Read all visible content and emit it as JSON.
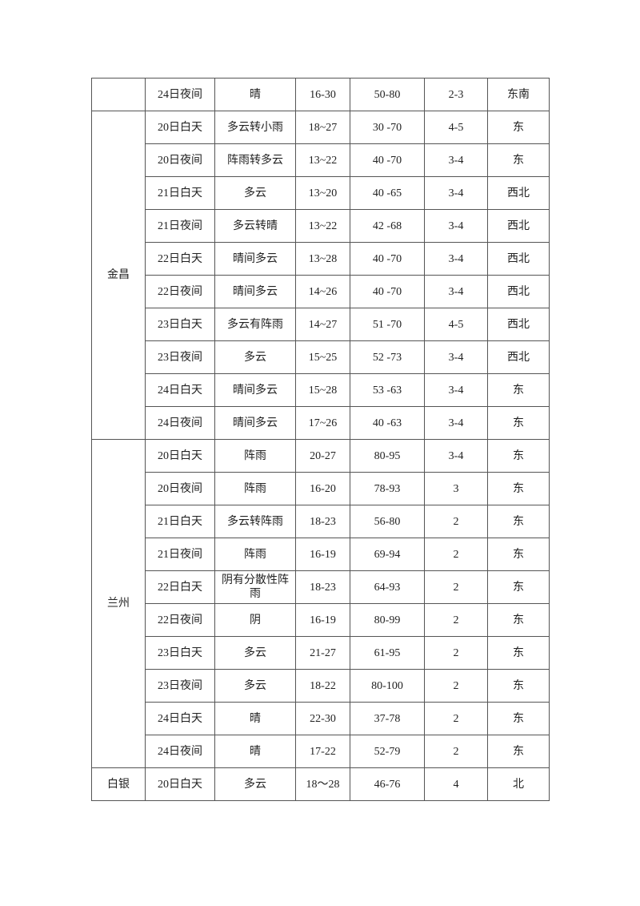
{
  "groups": [
    {
      "city": "",
      "rows": [
        [
          "24日夜间",
          "晴",
          "16-30",
          "50-80",
          "2-3",
          "东南"
        ]
      ]
    },
    {
      "city": "金昌",
      "rows": [
        [
          "20日白天",
          "多云转小雨",
          "18~27",
          "30 -70",
          "4-5",
          "东"
        ],
        [
          "20日夜间",
          "阵雨转多云",
          "13~22",
          "40 -70",
          "3-4",
          "东"
        ],
        [
          "21日白天",
          "多云",
          "13~20",
          "40 -65",
          "3-4",
          "西北"
        ],
        [
          "21日夜间",
          "多云转晴",
          "13~22",
          "42 -68",
          "3-4",
          "西北"
        ],
        [
          "22日白天",
          "晴间多云",
          "13~28",
          "40 -70",
          "3-4",
          "西北"
        ],
        [
          "22日夜间",
          "晴间多云",
          "14~26",
          "40 -70",
          "3-4",
          "西北"
        ],
        [
          "23日白天",
          "多云有阵雨",
          "14~27",
          "51 -70",
          "4-5",
          "西北"
        ],
        [
          "23日夜间",
          "多云",
          "15~25",
          "52 -73",
          "3-4",
          "西北"
        ],
        [
          "24日白天",
          "晴间多云",
          "15~28",
          "53 -63",
          "3-4",
          "东"
        ],
        [
          "24日夜间",
          "晴间多云",
          "17~26",
          "40 -63",
          "3-4",
          "东"
        ]
      ]
    },
    {
      "city": "兰州",
      "rows": [
        [
          "20日白天",
          "阵雨",
          "20-27",
          "80-95",
          "3-4",
          "东"
        ],
        [
          "20日夜间",
          "阵雨",
          "16-20",
          "78-93",
          "3",
          "东"
        ],
        [
          "21日白天",
          "多云转阵雨",
          "18-23",
          "56-80",
          "2",
          "东"
        ],
        [
          "21日夜间",
          "阵雨",
          "16-19",
          "69-94",
          "2",
          "东"
        ],
        [
          "22日白天",
          "阴有分散性阵雨",
          "18-23",
          "64-93",
          "2",
          "东"
        ],
        [
          "22日夜间",
          "阴",
          "16-19",
          "80-99",
          "2",
          "东"
        ],
        [
          "23日白天",
          "多云",
          "21-27",
          "61-95",
          "2",
          "东"
        ],
        [
          "23日夜间",
          "多云",
          "18-22",
          "80-100",
          "2",
          "东"
        ],
        [
          "24日白天",
          "晴",
          "22-30",
          "37-78",
          "2",
          "东"
        ],
        [
          "24日夜间",
          "晴",
          "17-22",
          "52-79",
          "2",
          "东"
        ]
      ]
    },
    {
      "city": "白银",
      "rows": [
        [
          "20日白天",
          "多云",
          "18～28",
          "46-76",
          "4",
          "北"
        ]
      ]
    }
  ]
}
